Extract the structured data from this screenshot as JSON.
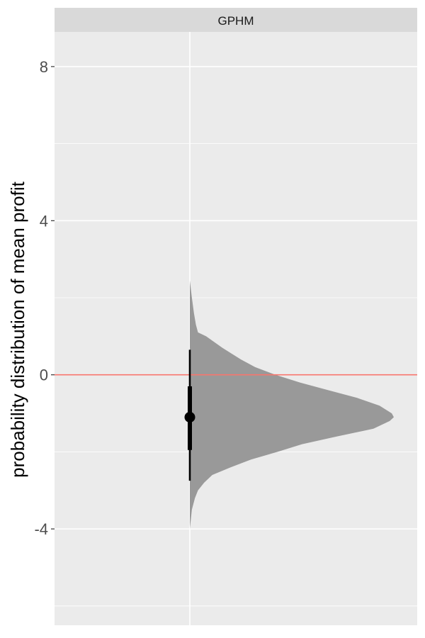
{
  "chart_data": {
    "type": "halfeye",
    "facet": "GPHM",
    "xlabel": "",
    "ylabel": "probability distribution of mean profit",
    "ylim": [
      -6.5,
      8.9
    ],
    "yticks": [
      -4,
      0,
      4,
      8
    ],
    "ytick_labels": [
      "-4",
      "0",
      "4",
      "8"
    ],
    "reference_line": {
      "y": 0,
      "color": "#f8766d"
    },
    "density": {
      "color": "#999999",
      "points": [
        [
          2.45,
          0.0
        ],
        [
          2.0,
          0.01
        ],
        [
          1.6,
          0.02
        ],
        [
          1.3,
          0.03
        ],
        [
          1.1,
          0.04
        ],
        [
          1.0,
          0.08
        ],
        [
          0.7,
          0.16
        ],
        [
          0.4,
          0.25
        ],
        [
          0.2,
          0.32
        ],
        [
          0.0,
          0.42
        ],
        [
          -0.2,
          0.54
        ],
        [
          -0.4,
          0.68
        ],
        [
          -0.6,
          0.82
        ],
        [
          -0.8,
          0.93
        ],
        [
          -1.0,
          0.99
        ],
        [
          -1.1,
          1.0
        ],
        [
          -1.2,
          0.98
        ],
        [
          -1.4,
          0.9
        ],
        [
          -1.6,
          0.72
        ],
        [
          -1.8,
          0.55
        ],
        [
          -2.0,
          0.43
        ],
        [
          -2.2,
          0.3
        ],
        [
          -2.4,
          0.2
        ],
        [
          -2.6,
          0.11
        ],
        [
          -2.8,
          0.07
        ],
        [
          -3.0,
          0.04
        ],
        [
          -3.2,
          0.025
        ],
        [
          -3.5,
          0.01
        ],
        [
          -4.0,
          0.0
        ]
      ]
    },
    "point_interval": {
      "median": -1.1,
      "interval_66": [
        -1.95,
        -0.3
      ],
      "interval_95": [
        -2.75,
        0.65
      ],
      "color": "#000000"
    },
    "grid": true
  }
}
